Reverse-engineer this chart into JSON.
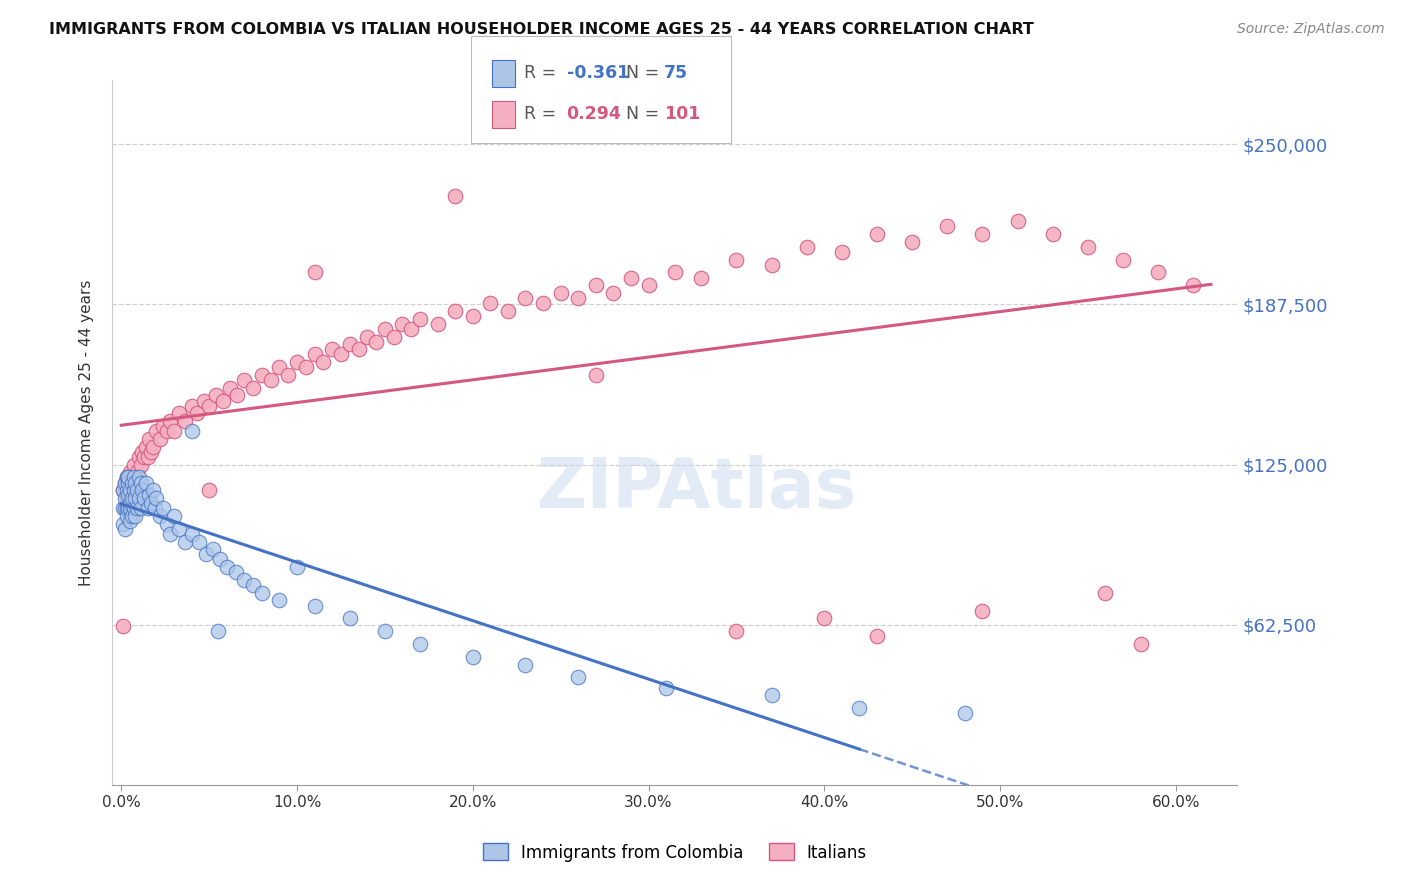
{
  "title": "IMMIGRANTS FROM COLOMBIA VS ITALIAN HOUSEHOLDER INCOME AGES 25 - 44 YEARS CORRELATION CHART",
  "source": "Source: ZipAtlas.com",
  "ylabel": "Householder Income Ages 25 - 44 years",
  "xlabel_ticks": [
    "0.0%",
    "10.0%",
    "20.0%",
    "30.0%",
    "40.0%",
    "50.0%",
    "60.0%"
  ],
  "xlabel_vals": [
    0.0,
    0.1,
    0.2,
    0.3,
    0.4,
    0.5,
    0.6
  ],
  "ytick_labels": [
    "$62,500",
    "$125,000",
    "$187,500",
    "$250,000"
  ],
  "ytick_vals": [
    62500,
    125000,
    187500,
    250000
  ],
  "xlim": [
    -0.005,
    0.635
  ],
  "ylim": [
    0,
    275000
  ],
  "colombia_color": "#adc6e8",
  "italian_color": "#f4b0c0",
  "colombia_line_color": "#4472c4",
  "italian_line_color": "#d45880",
  "colombia_R": -0.361,
  "colombia_N": 75,
  "italian_R": 0.294,
  "italian_N": 101,
  "legend_label_colombia": "Immigrants from Colombia",
  "legend_label_italian": "Italians",
  "watermark": "ZIPAtlas",
  "background_color": "#ffffff",
  "colombia_x": [
    0.001,
    0.001,
    0.001,
    0.002,
    0.002,
    0.002,
    0.002,
    0.003,
    0.003,
    0.003,
    0.003,
    0.004,
    0.004,
    0.004,
    0.004,
    0.005,
    0.005,
    0.005,
    0.005,
    0.006,
    0.006,
    0.006,
    0.007,
    0.007,
    0.007,
    0.008,
    0.008,
    0.008,
    0.009,
    0.009,
    0.01,
    0.01,
    0.011,
    0.011,
    0.012,
    0.013,
    0.014,
    0.015,
    0.016,
    0.017,
    0.018,
    0.019,
    0.02,
    0.022,
    0.024,
    0.026,
    0.028,
    0.03,
    0.033,
    0.036,
    0.04,
    0.044,
    0.048,
    0.052,
    0.056,
    0.06,
    0.065,
    0.07,
    0.075,
    0.08,
    0.09,
    0.1,
    0.11,
    0.13,
    0.15,
    0.17,
    0.2,
    0.23,
    0.26,
    0.31,
    0.37,
    0.42,
    0.48,
    0.04,
    0.055
  ],
  "colombia_y": [
    115000,
    108000,
    102000,
    118000,
    112000,
    108000,
    100000,
    120000,
    115000,
    108000,
    105000,
    118000,
    113000,
    108000,
    120000,
    115000,
    108000,
    103000,
    110000,
    118000,
    112000,
    105000,
    120000,
    115000,
    108000,
    118000,
    112000,
    105000,
    115000,
    108000,
    120000,
    112000,
    118000,
    108000,
    115000,
    112000,
    118000,
    108000,
    113000,
    110000,
    115000,
    108000,
    112000,
    105000,
    108000,
    102000,
    98000,
    105000,
    100000,
    95000,
    98000,
    95000,
    90000,
    92000,
    88000,
    85000,
    83000,
    80000,
    78000,
    75000,
    72000,
    85000,
    70000,
    65000,
    60000,
    55000,
    50000,
    47000,
    42000,
    38000,
    35000,
    30000,
    28000,
    138000,
    60000
  ],
  "italian_x": [
    0.001,
    0.001,
    0.002,
    0.002,
    0.003,
    0.003,
    0.004,
    0.004,
    0.005,
    0.005,
    0.006,
    0.006,
    0.007,
    0.008,
    0.008,
    0.009,
    0.01,
    0.011,
    0.012,
    0.013,
    0.014,
    0.015,
    0.016,
    0.017,
    0.018,
    0.02,
    0.022,
    0.024,
    0.026,
    0.028,
    0.03,
    0.033,
    0.036,
    0.04,
    0.043,
    0.047,
    0.05,
    0.054,
    0.058,
    0.062,
    0.066,
    0.07,
    0.075,
    0.08,
    0.085,
    0.09,
    0.095,
    0.1,
    0.105,
    0.11,
    0.115,
    0.12,
    0.125,
    0.13,
    0.135,
    0.14,
    0.145,
    0.15,
    0.155,
    0.16,
    0.165,
    0.17,
    0.18,
    0.19,
    0.2,
    0.21,
    0.22,
    0.23,
    0.24,
    0.25,
    0.26,
    0.27,
    0.28,
    0.29,
    0.3,
    0.315,
    0.33,
    0.35,
    0.37,
    0.39,
    0.41,
    0.43,
    0.45,
    0.47,
    0.49,
    0.51,
    0.53,
    0.55,
    0.57,
    0.59,
    0.61,
    0.56,
    0.4,
    0.58,
    0.49,
    0.43,
    0.35,
    0.27,
    0.19,
    0.11,
    0.05
  ],
  "italian_y": [
    62000,
    115000,
    118000,
    108000,
    120000,
    112000,
    118000,
    108000,
    122000,
    115000,
    120000,
    112000,
    125000,
    120000,
    115000,
    122000,
    128000,
    125000,
    130000,
    128000,
    132000,
    128000,
    135000,
    130000,
    132000,
    138000,
    135000,
    140000,
    138000,
    142000,
    138000,
    145000,
    142000,
    148000,
    145000,
    150000,
    148000,
    152000,
    150000,
    155000,
    152000,
    158000,
    155000,
    160000,
    158000,
    163000,
    160000,
    165000,
    163000,
    168000,
    165000,
    170000,
    168000,
    172000,
    170000,
    175000,
    173000,
    178000,
    175000,
    180000,
    178000,
    182000,
    180000,
    185000,
    183000,
    188000,
    185000,
    190000,
    188000,
    192000,
    190000,
    195000,
    192000,
    198000,
    195000,
    200000,
    198000,
    205000,
    203000,
    210000,
    208000,
    215000,
    212000,
    218000,
    215000,
    220000,
    215000,
    210000,
    205000,
    200000,
    195000,
    75000,
    65000,
    55000,
    68000,
    58000,
    60000,
    160000,
    230000,
    200000,
    115000
  ]
}
